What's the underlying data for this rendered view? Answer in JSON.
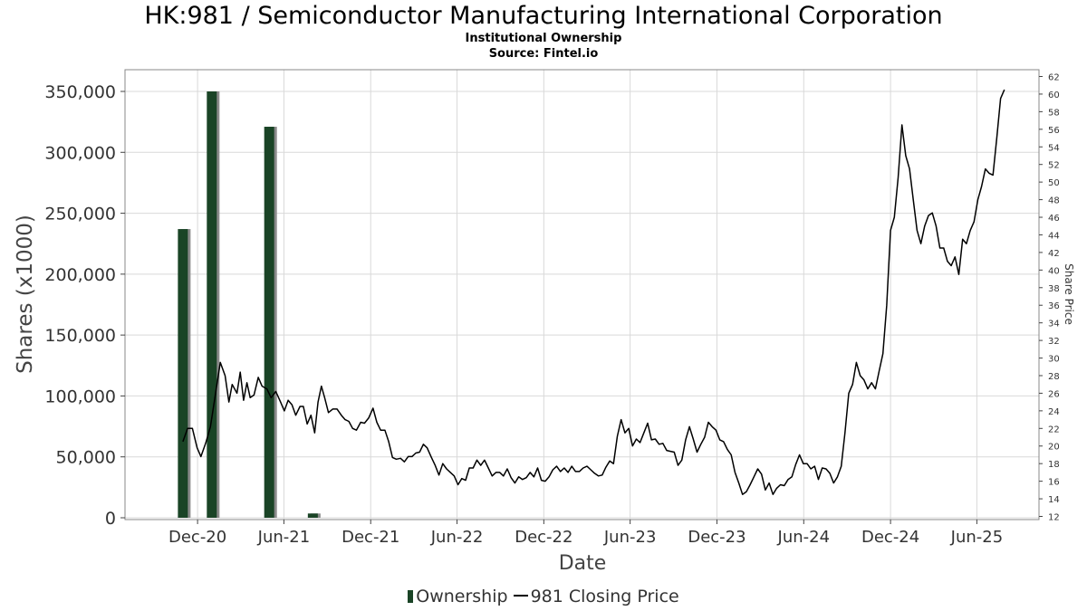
{
  "chart_data": {
    "type": "bar+line",
    "title": "HK:981 / Semiconductor Manufacturing International Corporation",
    "subtitle_lines": [
      "Institutional Ownership",
      "Source: Fintel.io"
    ],
    "xlabel": "Date",
    "ylabel_left": "Shares (x1000)",
    "ylabel_right": "Share Price",
    "x_ticks": [
      "Dec-20",
      "Jun-21",
      "Dec-21",
      "Jun-22",
      "Dec-22",
      "Jun-23",
      "Dec-23",
      "Jun-24",
      "Dec-24",
      "Jun-25"
    ],
    "y_left_ticks": [
      "0",
      "50,000",
      "100,000",
      "150,000",
      "200,000",
      "250,000",
      "300,000",
      "350,000"
    ],
    "y_left_range": [
      0,
      350000
    ],
    "y_right_ticks": [
      "12",
      "14",
      "16",
      "18",
      "20",
      "22",
      "24",
      "26",
      "28",
      "30",
      "32",
      "34",
      "36",
      "38",
      "40",
      "42",
      "44",
      "46",
      "48",
      "50",
      "52",
      "54",
      "56",
      "58",
      "60",
      "62"
    ],
    "y_right_range": [
      12,
      62
    ],
    "x_range": [
      "2020-07-01",
      "2025-10-10"
    ],
    "grid": true,
    "legend_position": "bottom",
    "series": [
      {
        "name": "Ownership",
        "kind": "bar",
        "color": "#1a4426",
        "points": [
          {
            "date": "2020-10-31",
            "value": 237000
          },
          {
            "date": "2020-12-31",
            "value": 350000
          },
          {
            "date": "2021-05-01",
            "value": 321000
          },
          {
            "date": "2021-08-01",
            "value": 3500
          }
        ]
      },
      {
        "name": "981 Closing Price",
        "kind": "line",
        "color": "#000000",
        "points": [
          [
            "2020-10-31",
            20.5
          ],
          [
            "2020-11-10",
            22.0
          ],
          [
            "2020-11-20",
            22.0
          ],
          [
            "2020-11-30",
            19.8
          ],
          [
            "2020-12-08",
            18.8
          ],
          [
            "2020-12-18",
            20.3
          ],
          [
            "2020-12-28",
            22.2
          ],
          [
            "2021-01-08",
            26.0
          ],
          [
            "2021-01-18",
            29.5
          ],
          [
            "2021-01-28",
            28.0
          ],
          [
            "2021-02-05",
            25.0
          ],
          [
            "2021-02-12",
            27.0
          ],
          [
            "2021-02-22",
            26.0
          ],
          [
            "2021-03-01",
            28.4
          ],
          [
            "2021-03-08",
            25.2
          ],
          [
            "2021-03-15",
            27.2
          ],
          [
            "2021-03-22",
            25.5
          ],
          [
            "2021-03-30",
            25.8
          ],
          [
            "2021-04-08",
            27.8
          ],
          [
            "2021-04-16",
            26.8
          ],
          [
            "2021-04-26",
            26.5
          ],
          [
            "2021-05-05",
            25.5
          ],
          [
            "2021-05-15",
            26.2
          ],
          [
            "2021-05-25",
            25.0
          ],
          [
            "2021-06-02",
            24.0
          ],
          [
            "2021-06-10",
            25.2
          ],
          [
            "2021-06-18",
            24.7
          ],
          [
            "2021-06-26",
            23.5
          ],
          [
            "2021-07-05",
            24.5
          ],
          [
            "2021-07-12",
            24.5
          ],
          [
            "2021-07-20",
            22.5
          ],
          [
            "2021-07-28",
            23.5
          ],
          [
            "2021-08-05",
            21.5
          ],
          [
            "2021-08-12",
            25.0
          ],
          [
            "2021-08-19",
            26.8
          ],
          [
            "2021-08-26",
            25.5
          ],
          [
            "2021-09-03",
            23.8
          ],
          [
            "2021-09-12",
            24.2
          ],
          [
            "2021-09-21",
            24.2
          ],
          [
            "2021-09-30",
            23.5
          ],
          [
            "2021-10-08",
            23.0
          ],
          [
            "2021-10-16",
            22.8
          ],
          [
            "2021-10-24",
            22.0
          ],
          [
            "2021-11-01",
            21.8
          ],
          [
            "2021-11-10",
            22.7
          ],
          [
            "2021-11-18",
            22.6
          ],
          [
            "2021-11-27",
            23.2
          ],
          [
            "2021-12-06",
            24.3
          ],
          [
            "2021-12-14",
            22.7
          ],
          [
            "2021-12-22",
            21.8
          ],
          [
            "2021-12-31",
            21.8
          ],
          [
            "2022-01-08",
            20.5
          ],
          [
            "2022-01-16",
            18.7
          ],
          [
            "2022-01-24",
            18.5
          ],
          [
            "2022-02-02",
            18.6
          ],
          [
            "2022-02-10",
            18.2
          ],
          [
            "2022-02-18",
            18.8
          ],
          [
            "2022-02-26",
            18.8
          ],
          [
            "2022-03-06",
            19.2
          ],
          [
            "2022-03-14",
            19.3
          ],
          [
            "2022-03-22",
            20.2
          ],
          [
            "2022-03-30",
            19.8
          ],
          [
            "2022-04-08",
            18.7
          ],
          [
            "2022-04-16",
            17.8
          ],
          [
            "2022-04-24",
            16.7
          ],
          [
            "2022-05-02",
            18.0
          ],
          [
            "2022-05-10",
            17.4
          ],
          [
            "2022-05-18",
            17.0
          ],
          [
            "2022-05-26",
            16.6
          ],
          [
            "2022-06-03",
            15.6
          ],
          [
            "2022-06-11",
            16.3
          ],
          [
            "2022-06-19",
            16.1
          ],
          [
            "2022-06-27",
            17.5
          ],
          [
            "2022-07-05",
            17.5
          ],
          [
            "2022-07-13",
            18.4
          ],
          [
            "2022-07-21",
            17.8
          ],
          [
            "2022-07-29",
            18.4
          ],
          [
            "2022-08-06",
            17.5
          ],
          [
            "2022-08-14",
            16.6
          ],
          [
            "2022-08-22",
            17.0
          ],
          [
            "2022-08-30",
            17.0
          ],
          [
            "2022-09-07",
            16.6
          ],
          [
            "2022-09-15",
            17.4
          ],
          [
            "2022-09-23",
            16.4
          ],
          [
            "2022-10-01",
            15.8
          ],
          [
            "2022-10-09",
            16.5
          ],
          [
            "2022-10-17",
            16.2
          ],
          [
            "2022-10-25",
            16.4
          ],
          [
            "2022-11-02",
            17.0
          ],
          [
            "2022-11-10",
            16.5
          ],
          [
            "2022-11-18",
            17.5
          ],
          [
            "2022-11-26",
            16.1
          ],
          [
            "2022-12-04",
            16.0
          ],
          [
            "2022-12-12",
            16.5
          ],
          [
            "2022-12-20",
            17.3
          ],
          [
            "2022-12-28",
            17.7
          ],
          [
            "2023-01-05",
            17.1
          ],
          [
            "2023-01-13",
            17.5
          ],
          [
            "2023-01-21",
            17.0
          ],
          [
            "2023-01-29",
            17.7
          ],
          [
            "2023-02-06",
            17.1
          ],
          [
            "2023-02-14",
            17.1
          ],
          [
            "2023-02-22",
            17.5
          ],
          [
            "2023-03-02",
            17.7
          ],
          [
            "2023-03-10",
            17.3
          ],
          [
            "2023-03-18",
            16.9
          ],
          [
            "2023-03-26",
            16.6
          ],
          [
            "2023-04-03",
            16.7
          ],
          [
            "2023-04-11",
            17.6
          ],
          [
            "2023-04-19",
            18.3
          ],
          [
            "2023-04-27",
            18.0
          ],
          [
            "2023-05-05",
            21.1
          ],
          [
            "2023-05-13",
            23.0
          ],
          [
            "2023-05-21",
            21.5
          ],
          [
            "2023-05-29",
            22.0
          ],
          [
            "2023-06-06",
            20.0
          ],
          [
            "2023-06-14",
            20.8
          ],
          [
            "2023-06-22",
            20.4
          ],
          [
            "2023-06-30",
            21.5
          ],
          [
            "2023-07-08",
            22.6
          ],
          [
            "2023-07-16",
            20.7
          ],
          [
            "2023-07-24",
            20.8
          ],
          [
            "2023-08-01",
            20.2
          ],
          [
            "2023-08-09",
            20.3
          ],
          [
            "2023-08-17",
            19.5
          ],
          [
            "2023-08-25",
            19.4
          ],
          [
            "2023-09-02",
            19.3
          ],
          [
            "2023-09-10",
            17.8
          ],
          [
            "2023-09-18",
            18.4
          ],
          [
            "2023-09-26",
            20.7
          ],
          [
            "2023-10-04",
            22.2
          ],
          [
            "2023-10-12",
            20.8
          ],
          [
            "2023-10-20",
            19.3
          ],
          [
            "2023-10-28",
            20.2
          ],
          [
            "2023-11-05",
            21.0
          ],
          [
            "2023-11-13",
            22.7
          ],
          [
            "2023-11-21",
            22.2
          ],
          [
            "2023-11-29",
            21.8
          ],
          [
            "2023-12-07",
            20.7
          ],
          [
            "2023-12-15",
            20.5
          ],
          [
            "2023-12-23",
            19.6
          ],
          [
            "2023-12-31",
            19.0
          ],
          [
            "2024-01-08",
            17.0
          ],
          [
            "2024-01-16",
            15.8
          ],
          [
            "2024-01-24",
            14.5
          ],
          [
            "2024-02-01",
            14.8
          ],
          [
            "2024-02-09",
            15.6
          ],
          [
            "2024-02-17",
            16.5
          ],
          [
            "2024-02-25",
            17.4
          ],
          [
            "2024-03-04",
            16.8
          ],
          [
            "2024-03-12",
            15.0
          ],
          [
            "2024-03-20",
            15.8
          ],
          [
            "2024-03-28",
            14.5
          ],
          [
            "2024-04-05",
            15.2
          ],
          [
            "2024-04-13",
            15.6
          ],
          [
            "2024-04-21",
            15.5
          ],
          [
            "2024-04-29",
            16.2
          ],
          [
            "2024-05-07",
            16.5
          ],
          [
            "2024-05-15",
            17.9
          ],
          [
            "2024-05-23",
            19.0
          ],
          [
            "2024-05-31",
            18.0
          ],
          [
            "2024-06-08",
            18.0
          ],
          [
            "2024-06-16",
            17.4
          ],
          [
            "2024-06-24",
            17.7
          ],
          [
            "2024-07-02",
            16.2
          ],
          [
            "2024-07-10",
            17.5
          ],
          [
            "2024-07-18",
            17.4
          ],
          [
            "2024-07-26",
            16.9
          ],
          [
            "2024-08-03",
            15.8
          ],
          [
            "2024-08-11",
            16.5
          ],
          [
            "2024-08-19",
            17.7
          ],
          [
            "2024-08-27",
            21.5
          ],
          [
            "2024-09-04",
            26.0
          ],
          [
            "2024-09-12",
            27.0
          ],
          [
            "2024-09-20",
            29.5
          ],
          [
            "2024-09-28",
            28.0
          ],
          [
            "2024-10-06",
            27.5
          ],
          [
            "2024-10-14",
            26.5
          ],
          [
            "2024-10-22",
            27.2
          ],
          [
            "2024-10-30",
            26.5
          ],
          [
            "2024-11-07",
            28.5
          ],
          [
            "2024-11-15",
            30.5
          ],
          [
            "2024-11-23",
            36.0
          ],
          [
            "2024-12-01",
            44.5
          ],
          [
            "2024-12-09",
            46.0
          ],
          [
            "2024-12-17",
            50.5
          ],
          [
            "2024-12-25",
            56.5
          ],
          [
            "2025-01-02",
            53.0
          ],
          [
            "2025-01-10",
            51.5
          ],
          [
            "2025-01-18",
            48.0
          ],
          [
            "2025-01-26",
            44.5
          ],
          [
            "2025-02-03",
            43.0
          ],
          [
            "2025-02-11",
            45.0
          ],
          [
            "2025-02-19",
            46.2
          ],
          [
            "2025-02-27",
            46.5
          ],
          [
            "2025-03-07",
            45.0
          ],
          [
            "2025-03-15",
            42.5
          ],
          [
            "2025-03-23",
            42.5
          ],
          [
            "2025-03-31",
            41.0
          ],
          [
            "2025-04-08",
            40.5
          ],
          [
            "2025-04-16",
            41.5
          ],
          [
            "2025-04-24",
            39.5
          ],
          [
            "2025-05-02",
            43.5
          ],
          [
            "2025-05-10",
            43.0
          ],
          [
            "2025-05-18",
            44.5
          ],
          [
            "2025-05-26",
            45.5
          ],
          [
            "2025-06-03",
            48.0
          ],
          [
            "2025-06-11",
            49.5
          ],
          [
            "2025-06-19",
            51.5
          ],
          [
            "2025-06-27",
            51.0
          ],
          [
            "2025-07-05",
            50.8
          ],
          [
            "2025-07-13",
            55.0
          ],
          [
            "2025-07-21",
            59.5
          ],
          [
            "2025-07-29",
            60.5
          ]
        ]
      }
    ]
  },
  "legend": {
    "items": [
      {
        "label": "Ownership"
      },
      {
        "label": "981 Closing Price"
      }
    ]
  },
  "colors": {
    "bar": "#1a4426",
    "bar_shadow": "#8a8a8a",
    "line": "#000000",
    "grid": "#d9d9d9",
    "axis": "#444444"
  }
}
